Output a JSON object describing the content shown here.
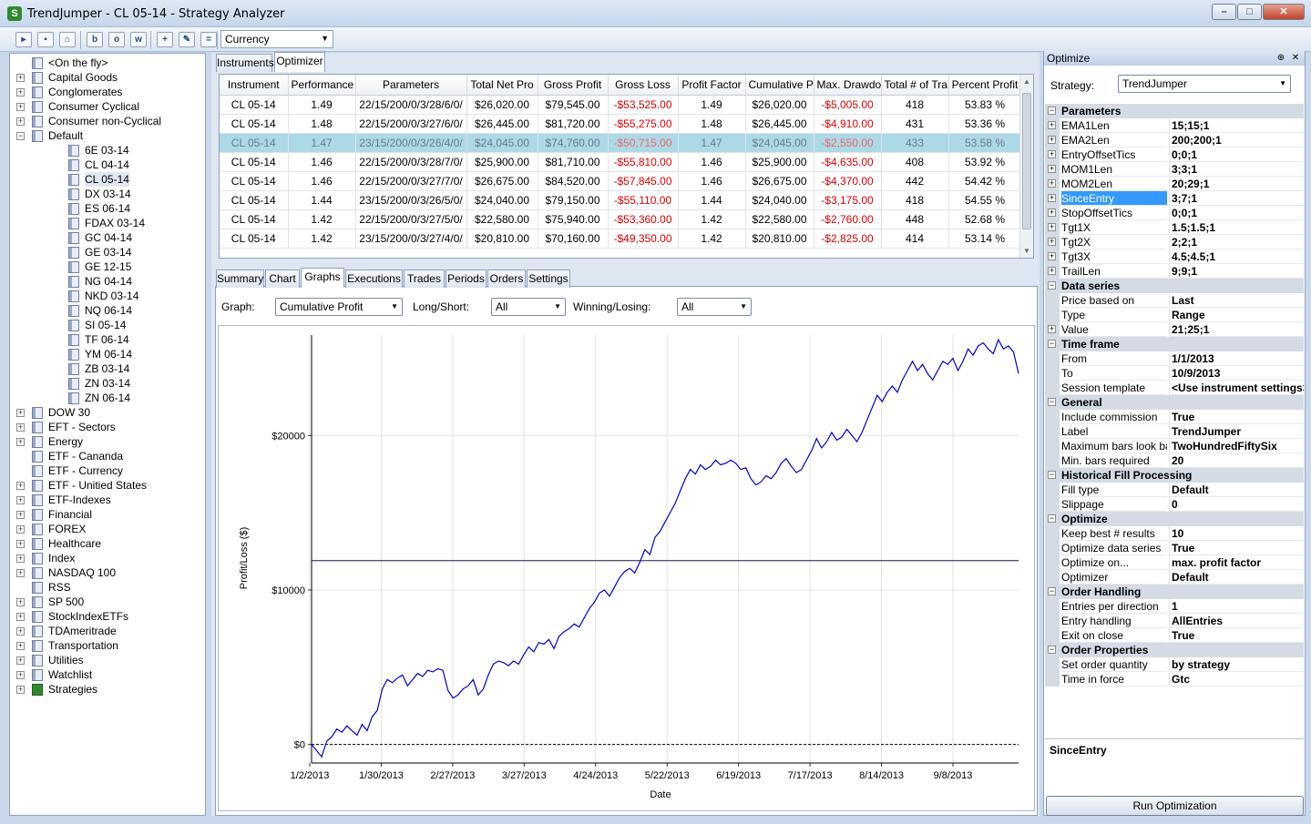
{
  "window": {
    "title": "TrendJumper - CL 05-14 - Strategy Analyzer",
    "controls": {
      "minimize": "–",
      "maximize": "□",
      "close": "✕"
    }
  },
  "toolbar": {
    "icons": [
      "open-folder-icon",
      "save-icon",
      "comment-icon",
      "b-icon",
      "o-icon",
      "w-icon",
      "add-icon",
      "edit-icon",
      "remove-icon"
    ],
    "icon_glyphs": [
      "▸",
      "▪",
      "⌂",
      "b",
      "o",
      "w",
      "+",
      "✎",
      "="
    ],
    "currency_select": "Currency"
  },
  "tree": {
    "items": [
      {
        "label": "<On the fly>",
        "expandable": false,
        "level": 0
      },
      {
        "label": "Capital Goods",
        "expandable": true,
        "level": 0
      },
      {
        "label": "Conglomerates",
        "expandable": true,
        "level": 0
      },
      {
        "label": "Consumer Cyclical",
        "expandable": true,
        "level": 0
      },
      {
        "label": "Consumer non-Cyclical",
        "expandable": true,
        "level": 0
      },
      {
        "label": "Default",
        "expandable": true,
        "expanded": true,
        "level": 0
      },
      {
        "label": "6E 03-14",
        "level": 1
      },
      {
        "label": "CL 04-14",
        "level": 1
      },
      {
        "label": "CL 05-14",
        "level": 1,
        "selected": true
      },
      {
        "label": "DX 03-14",
        "level": 1
      },
      {
        "label": "ES 06-14",
        "level": 1
      },
      {
        "label": "FDAX 03-14",
        "level": 1
      },
      {
        "label": "GC 04-14",
        "level": 1
      },
      {
        "label": "GE 03-14",
        "level": 1
      },
      {
        "label": "GE 12-15",
        "level": 1
      },
      {
        "label": "NG 04-14",
        "level": 1
      },
      {
        "label": "NKD 03-14",
        "level": 1
      },
      {
        "label": "NQ 06-14",
        "level": 1
      },
      {
        "label": "SI 05-14",
        "level": 1
      },
      {
        "label": "TF 06-14",
        "level": 1
      },
      {
        "label": "YM 06-14",
        "level": 1
      },
      {
        "label": "ZB 03-14",
        "level": 1
      },
      {
        "label": "ZN 03-14",
        "level": 1
      },
      {
        "label": "ZN 06-14",
        "level": 1
      },
      {
        "label": "DOW 30",
        "expandable": true,
        "level": 0
      },
      {
        "label": "EFT - Sectors",
        "expandable": true,
        "level": 0
      },
      {
        "label": "Energy",
        "expandable": true,
        "level": 0
      },
      {
        "label": "ETF - Cananda",
        "expandable": false,
        "level": 0
      },
      {
        "label": "ETF - Currency",
        "expandable": false,
        "level": 0
      },
      {
        "label": "ETF - Unitied States",
        "expandable": true,
        "level": 0
      },
      {
        "label": "ETF-Indexes",
        "expandable": true,
        "level": 0
      },
      {
        "label": "Financial",
        "expandable": true,
        "level": 0
      },
      {
        "label": "FOREX",
        "expandable": true,
        "level": 0
      },
      {
        "label": "Healthcare",
        "expandable": true,
        "level": 0
      },
      {
        "label": "Index",
        "expandable": true,
        "level": 0
      },
      {
        "label": "NASDAQ 100",
        "expandable": true,
        "level": 0
      },
      {
        "label": "RSS",
        "expandable": false,
        "level": 0
      },
      {
        "label": "SP 500",
        "expandable": true,
        "level": 0
      },
      {
        "label": "StockIndexETFs",
        "expandable": true,
        "level": 0
      },
      {
        "label": "TDAmeritrade",
        "expandable": true,
        "level": 0
      },
      {
        "label": "Transportation",
        "expandable": true,
        "level": 0
      },
      {
        "label": "Utilities",
        "expandable": true,
        "level": 0
      },
      {
        "label": "Watchlist",
        "expandable": true,
        "level": 0
      },
      {
        "label": "Strategies",
        "expandable": true,
        "level": 0,
        "icon": "strategy-icon"
      }
    ]
  },
  "top_tabs": [
    "Instruments",
    "Optimizer"
  ],
  "results_table": {
    "columns": [
      "Instrument",
      "Performance",
      "Parameters",
      "Total Net Pro",
      "Gross Profit",
      "Gross Loss",
      "Profit Factor",
      "Cumulative P",
      "Max. Drawdo",
      "Total # of Tra",
      "Percent Profit"
    ],
    "rows": [
      [
        "CL 05-14",
        "1.49",
        "22/15/200/0/3/28/6/0/",
        "$26,020.00",
        "$79,545.00",
        "-$53,525.00",
        "1.49",
        "$26,020.00",
        "-$5,005.00",
        "418",
        "53.83 %"
      ],
      [
        "CL 05-14",
        "1.48",
        "22/15/200/0/3/27/6/0/",
        "$26,445.00",
        "$81,720.00",
        "-$55,275.00",
        "1.48",
        "$26,445.00",
        "-$4,910.00",
        "431",
        "53.36 %"
      ],
      [
        "CL 05-14",
        "1.47",
        "23/15/200/0/3/26/4/0/",
        "$24,045.00",
        "$74,760.00",
        "-$50,715.00",
        "1.47",
        "$24,045.00",
        "-$2,550.00",
        "433",
        "53.58 %"
      ],
      [
        "CL 05-14",
        "1.46",
        "22/15/200/0/3/28/7/0/",
        "$25,900.00",
        "$81,710.00",
        "-$55,810.00",
        "1.46",
        "$25,900.00",
        "-$4,635.00",
        "408",
        "53.92 %"
      ],
      [
        "CL 05-14",
        "1.46",
        "22/15/200/0/3/27/7/0/",
        "$26,675.00",
        "$84,520.00",
        "-$57,845.00",
        "1.46",
        "$26,675.00",
        "-$4,370.00",
        "442",
        "54.42 %"
      ],
      [
        "CL 05-14",
        "1.44",
        "23/15/200/0/3/26/5/0/",
        "$24,040.00",
        "$79,150.00",
        "-$55,110.00",
        "1.44",
        "$24,040.00",
        "-$3,175.00",
        "418",
        "54.55 %"
      ],
      [
        "CL 05-14",
        "1.42",
        "22/15/200/0/3/27/5/0/",
        "$22,580.00",
        "$75,940.00",
        "-$53,360.00",
        "1.42",
        "$22,580.00",
        "-$2,760.00",
        "448",
        "52.68 %"
      ],
      [
        "CL 05-14",
        "1.42",
        "23/15/200/0/3/27/4/0/",
        "$20,810.00",
        "$70,160.00",
        "-$49,350.00",
        "1.42",
        "$20,810.00",
        "-$2,825.00",
        "414",
        "53.14 %"
      ]
    ],
    "selected_row": 2,
    "scroll_glyphs": {
      "up": "▲",
      "down": "▼"
    }
  },
  "bottom_tabs": [
    "Summary",
    "Chart",
    "Graphs",
    "Executions",
    "Trades",
    "Periods",
    "Orders",
    "Settings"
  ],
  "graph_controls": {
    "graph_label": "Graph:",
    "graph_value": "Cumulative Profit",
    "longshort_label": "Long/Short:",
    "longshort_value": "All",
    "winlose_label": "Winning/Losing:",
    "winlose_value": "All"
  },
  "chart_data": {
    "type": "line",
    "xlabel": "Date",
    "ylabel": "Profit/Loss ($)",
    "ylim": [
      -1200,
      26500
    ],
    "x_ticks": [
      "1/2/2013",
      "1/30/2013",
      "2/27/2013",
      "3/27/2013",
      "4/24/2013",
      "5/22/2013",
      "6/19/2013",
      "7/17/2013",
      "8/14/2013",
      "9/8/2013"
    ],
    "y_ticks": [
      {
        "value": 0,
        "label": "$0"
      },
      {
        "value": 10000,
        "label": "$10000"
      },
      {
        "value": 20000,
        "label": "$20000"
      }
    ],
    "grid": true,
    "reference_line": 11900,
    "line_color": "#0000cc",
    "series": [
      {
        "x": [
          0,
          2,
          4,
          6,
          8,
          10,
          12,
          14,
          16,
          18,
          20,
          22,
          24,
          26,
          28,
          30,
          32,
          34,
          36,
          38,
          40,
          42,
          44,
          46,
          48,
          50,
          52,
          54,
          56,
          58,
          60,
          62,
          64,
          66,
          68,
          70,
          72,
          74,
          76,
          78,
          80,
          82,
          84,
          86,
          88,
          90,
          92,
          94,
          96,
          98,
          100,
          102,
          104,
          106,
          108,
          110,
          112,
          114,
          116,
          118,
          120,
          122,
          124,
          126,
          128,
          130,
          132,
          134,
          136,
          138,
          140,
          142,
          144,
          146,
          148,
          150,
          152,
          154,
          156,
          158,
          160,
          162,
          164,
          166,
          168,
          170,
          172,
          174,
          176,
          178,
          180,
          182,
          184,
          186,
          188,
          190,
          192,
          194,
          196,
          198,
          200,
          202,
          204,
          206,
          208,
          210,
          212,
          214,
          216,
          218,
          220,
          222,
          224,
          226,
          228,
          230,
          232,
          234,
          236,
          238,
          240,
          242,
          244,
          246,
          248,
          250,
          252,
          254,
          256,
          258,
          260,
          262,
          264,
          266,
          268,
          270,
          272,
          274,
          276,
          278,
          280
        ],
        "y": [
          0,
          -400,
          -800,
          200,
          500,
          1000,
          800,
          1200,
          900,
          600,
          1300,
          900,
          1800,
          2200,
          3600,
          4200,
          4000,
          4300,
          4500,
          3800,
          4200,
          4600,
          4400,
          4800,
          4700,
          4900,
          4800,
          3500,
          3000,
          3200,
          3600,
          3800,
          4200,
          3200,
          3600,
          4500,
          5200,
          5400,
          5300,
          5100,
          5400,
          5200,
          5800,
          6300,
          6000,
          6600,
          6500,
          6800,
          6200,
          7000,
          7300,
          7500,
          7800,
          7600,
          8200,
          8800,
          9200,
          9800,
          10000,
          9600,
          10200,
          10800,
          11200,
          11400,
          11100,
          11800,
          12600,
          12300,
          13400,
          13800,
          14400,
          15000,
          15600,
          16400,
          17200,
          17800,
          17500,
          18100,
          17800,
          18000,
          18400,
          18100,
          18200,
          18400,
          18200,
          17800,
          17900,
          17200,
          16800,
          17000,
          17400,
          17200,
          17600,
          18200,
          18500,
          18000,
          17600,
          17800,
          18400,
          19000,
          19800,
          19200,
          19600,
          20200,
          19700,
          19900,
          20400,
          20000,
          19600,
          20200,
          21000,
          21800,
          22600,
          22200,
          22800,
          23200,
          22800,
          23600,
          24200,
          24800,
          24200,
          24600,
          24000,
          23600,
          24200,
          24800,
          24600,
          25000,
          24200,
          24800,
          25600,
          25200,
          25800,
          26000,
          25600,
          25300,
          26200,
          25600,
          25800,
          25400,
          24000
        ]
      }
    ]
  },
  "optimize_panel": {
    "title": "Optimize",
    "pin_glyph": "⊕",
    "close_glyph": "✕",
    "strategy_label": "Strategy:",
    "strategy_value": "TrendJumper",
    "properties": [
      {
        "cat": "Parameters"
      },
      {
        "name": "EMA1Len",
        "value": "15;15;1",
        "exp": true
      },
      {
        "name": "EMA2Len",
        "value": "200;200;1",
        "exp": true
      },
      {
        "name": "EntryOffsetTics",
        "value": "0;0;1",
        "exp": true
      },
      {
        "name": "MOM1Len",
        "value": "3;3;1",
        "exp": true
      },
      {
        "name": "MOM2Len",
        "value": "20;29;1",
        "exp": true
      },
      {
        "name": "SinceEntry",
        "value": "3;7;1",
        "exp": true,
        "highlighted": true
      },
      {
        "name": "StopOffsetTics",
        "value": "0;0;1",
        "exp": true
      },
      {
        "name": "Tgt1X",
        "value": "1.5;1.5;1",
        "exp": true
      },
      {
        "name": "Tgt2X",
        "value": "2;2;1",
        "exp": true
      },
      {
        "name": "Tgt3X",
        "value": "4.5;4.5;1",
        "exp": true
      },
      {
        "name": "TrailLen",
        "value": "9;9;1",
        "exp": true
      },
      {
        "cat": "Data series"
      },
      {
        "name": "Price based on",
        "value": "Last"
      },
      {
        "name": "Type",
        "value": "Range"
      },
      {
        "name": "Value",
        "value": "21;25;1",
        "exp": true
      },
      {
        "cat": "Time frame"
      },
      {
        "name": "From",
        "value": "1/1/2013"
      },
      {
        "name": "To",
        "value": "10/9/2013"
      },
      {
        "name": "Session template",
        "value": "<Use instrument settings>"
      },
      {
        "cat": "General"
      },
      {
        "name": "Include commission",
        "value": "True"
      },
      {
        "name": "Label",
        "value": "TrendJumper"
      },
      {
        "name": "Maximum bars look back",
        "value": "TwoHundredFiftySix"
      },
      {
        "name": "Min. bars required",
        "value": "20"
      },
      {
        "cat": "Historical Fill Processing"
      },
      {
        "name": "Fill type",
        "value": "Default"
      },
      {
        "name": "Slippage",
        "value": "0"
      },
      {
        "cat": "Optimize"
      },
      {
        "name": "Keep best # results",
        "value": "10"
      },
      {
        "name": "Optimize data series",
        "value": "True"
      },
      {
        "name": "Optimize on...",
        "value": "max. profit factor"
      },
      {
        "name": "Optimizer",
        "value": "Default"
      },
      {
        "cat": "Order Handling"
      },
      {
        "name": "Entries per direction",
        "value": "1"
      },
      {
        "name": "Entry handling",
        "value": "AllEntries"
      },
      {
        "name": "Exit on close",
        "value": "True"
      },
      {
        "cat": "Order Properties"
      },
      {
        "name": "Set order quantity",
        "value": "by strategy"
      },
      {
        "name": "Time in force",
        "value": "Gtc"
      }
    ],
    "description_title": "SinceEntry",
    "run_button": "Run Optimization"
  },
  "glyphs": {
    "expand": "+",
    "collapse": "−",
    "dropdown": "▼"
  }
}
